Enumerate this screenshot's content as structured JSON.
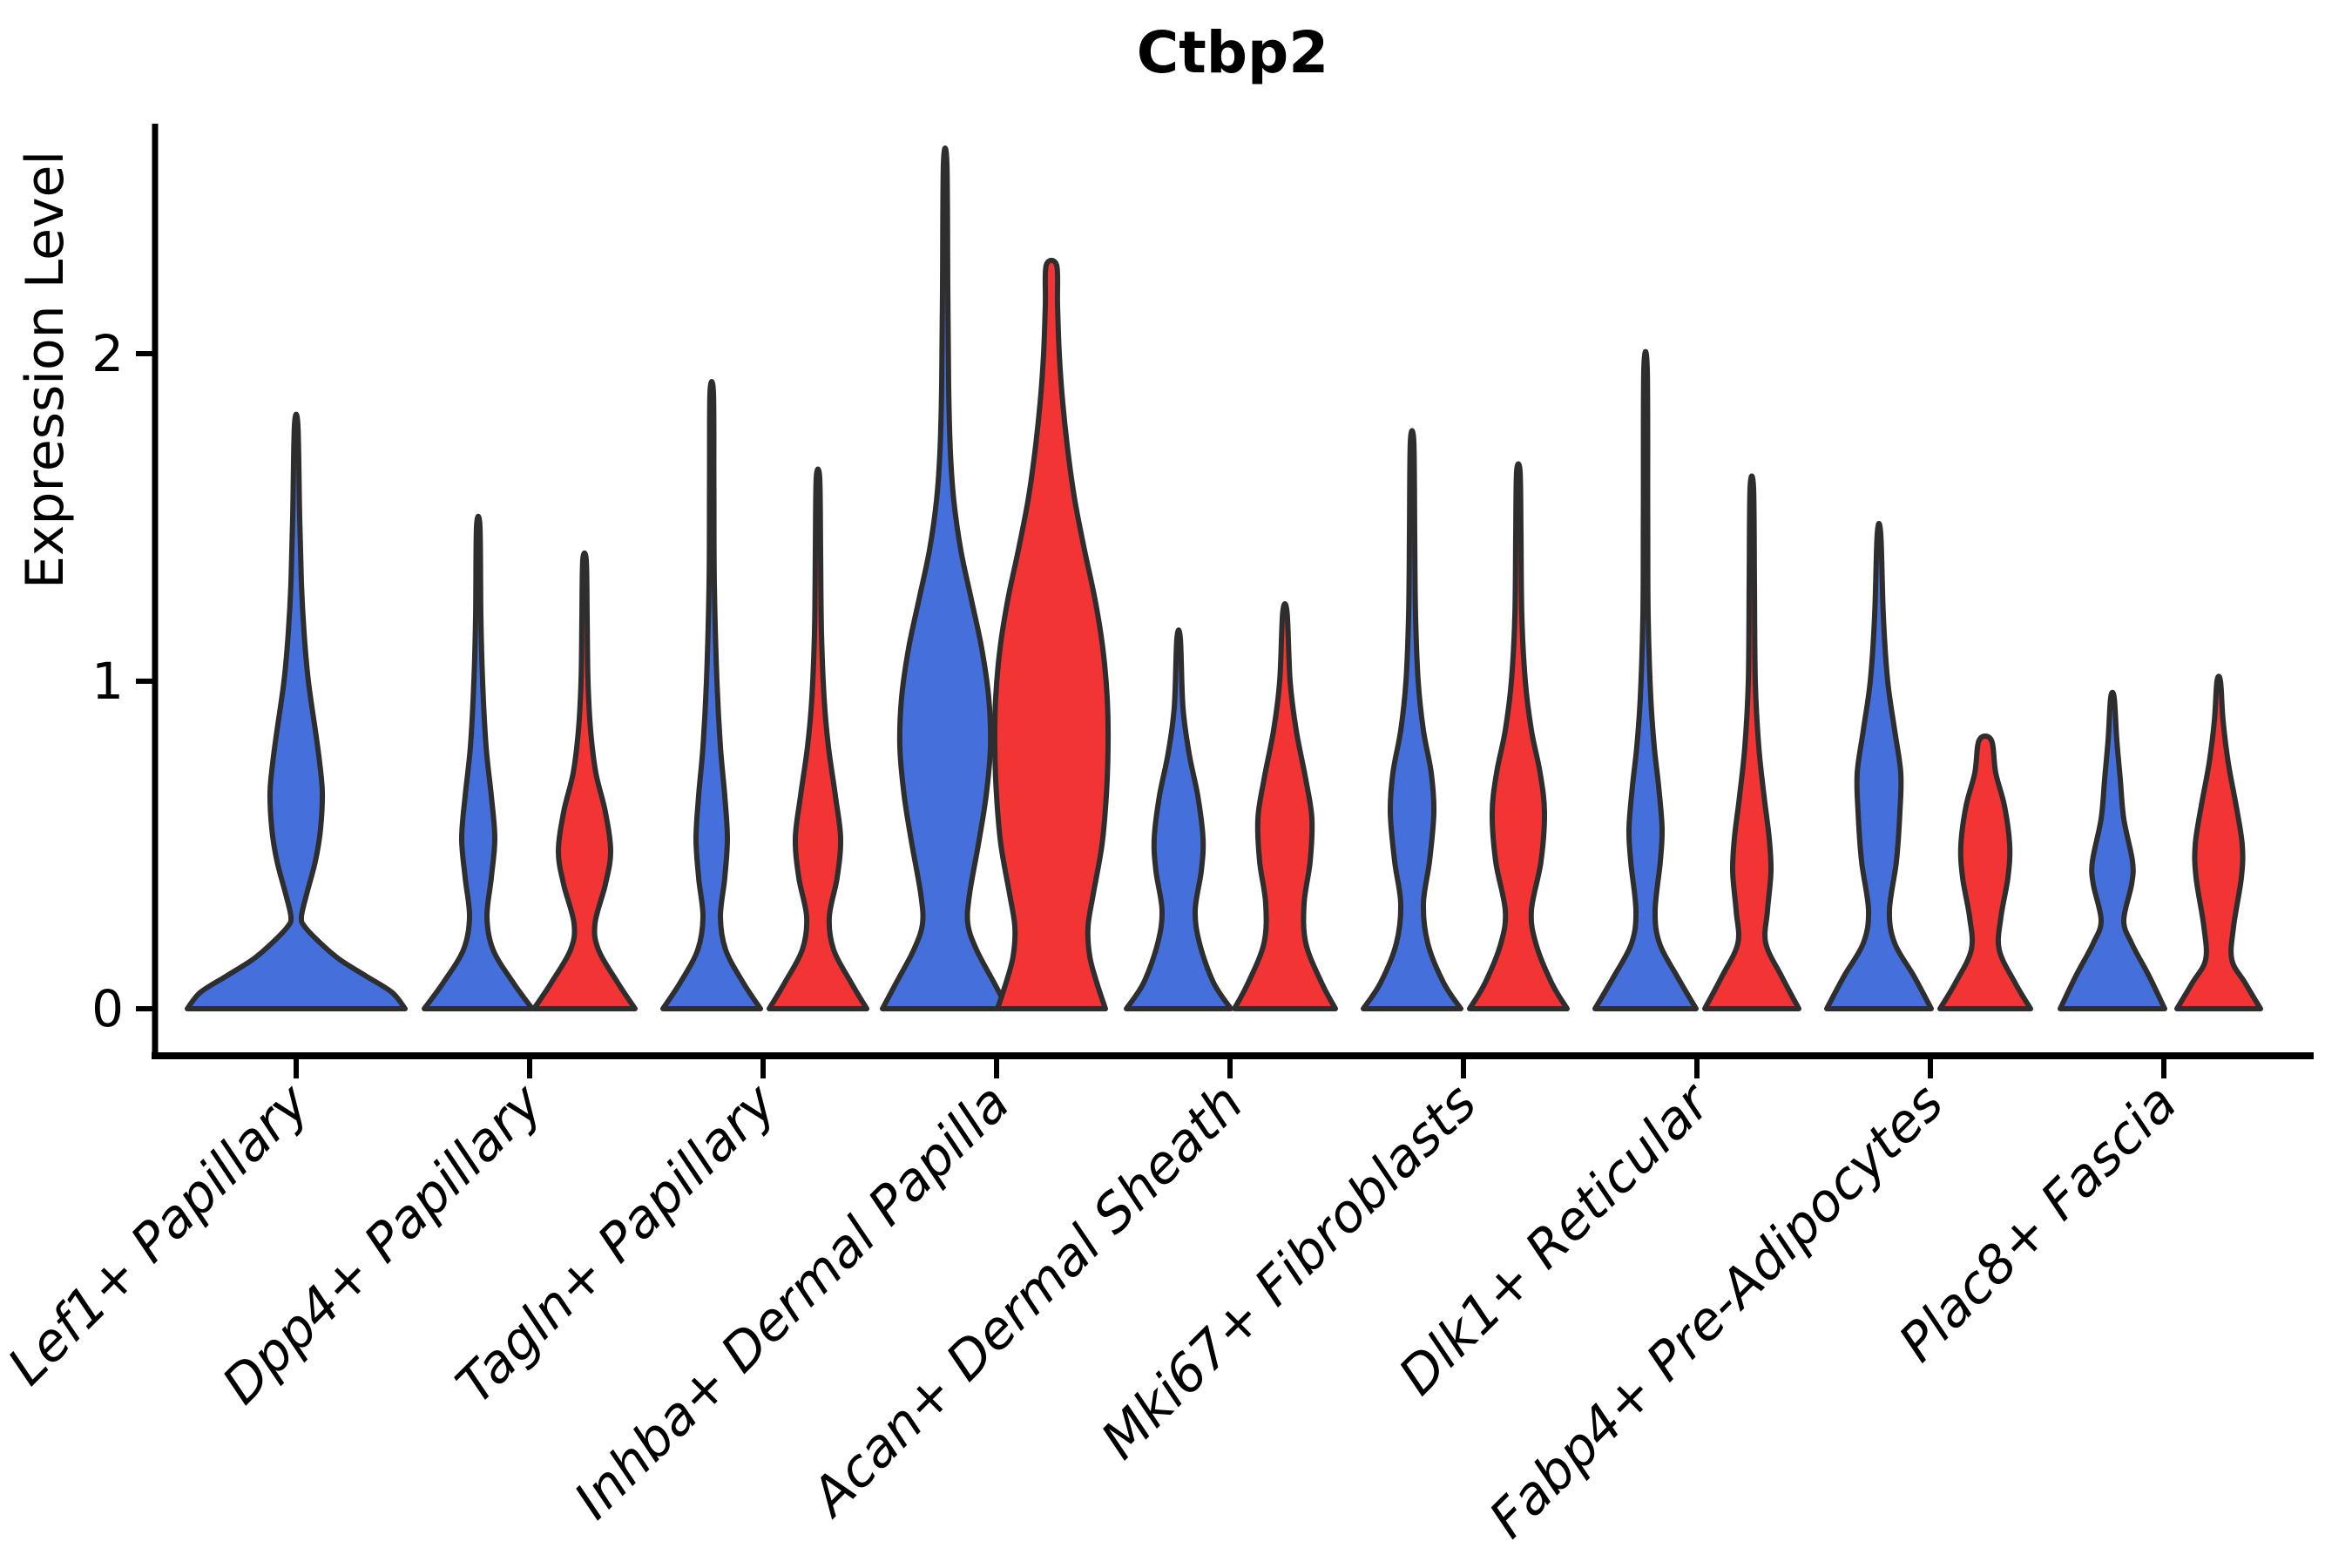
{
  "title": "Ctbp2",
  "y_axis_label": "Expression Level",
  "chart_data": {
    "type": "violin",
    "title": "Ctbp2",
    "xlabel": "",
    "ylabel": "Expression Level",
    "ylim": [
      -0.14,
      2.7
    ],
    "yticks": [
      "0",
      "1",
      "2"
    ],
    "ytick_values": [
      0,
      1,
      2
    ],
    "grid": false,
    "legend": "none",
    "x_tick_label_style": "italic, rotated 45deg, anchored at tick",
    "categories": [
      "Lef1+ Papillary",
      "Dpp4+ Papillary",
      "Tagln+ Papillary",
      "Inhba+ Dermal Papilla",
      "Acan+ Dermal Sheath",
      "Mki67+ Fibroblasts",
      "Dlk1+ Reticular",
      "Fabp4+ Pre-Adipocytes",
      "Plac8+ Fascia"
    ],
    "series": [
      {
        "name": "blue",
        "color": "#4570DC"
      },
      {
        "name": "red",
        "color": "#F23434"
      }
    ],
    "outline_color": "#2E2E2E",
    "violins": [
      {
        "cat": 0,
        "series": "blue",
        "max": 1.78,
        "single": true,
        "profile": [
          [
            0,
            125
          ],
          [
            0.05,
            110
          ],
          [
            0.1,
            80
          ],
          [
            0.15,
            50
          ],
          [
            0.2,
            28
          ],
          [
            0.25,
            10
          ],
          [
            0.28,
            6
          ],
          [
            0.35,
            12
          ],
          [
            0.45,
            22
          ],
          [
            0.55,
            28
          ],
          [
            0.66,
            30
          ],
          [
            0.75,
            27
          ],
          [
            0.85,
            22
          ],
          [
            1.0,
            14
          ],
          [
            1.15,
            9
          ],
          [
            1.3,
            6
          ],
          [
            1.5,
            4
          ],
          [
            1.78,
            2
          ]
        ]
      },
      {
        "cat": 1,
        "series": "blue",
        "max": 1.47,
        "profile": [
          [
            0,
            62
          ],
          [
            0.08,
            40
          ],
          [
            0.18,
            17
          ],
          [
            0.28,
            10
          ],
          [
            0.4,
            15
          ],
          [
            0.52,
            19
          ],
          [
            0.65,
            15
          ],
          [
            0.8,
            9
          ],
          [
            1.0,
            5
          ],
          [
            1.2,
            3
          ],
          [
            1.47,
            2
          ]
        ]
      },
      {
        "cat": 1,
        "series": "red",
        "max": 1.37,
        "profile": [
          [
            0,
            58
          ],
          [
            0.08,
            38
          ],
          [
            0.18,
            16
          ],
          [
            0.26,
            12
          ],
          [
            0.38,
            24
          ],
          [
            0.48,
            30
          ],
          [
            0.6,
            24
          ],
          [
            0.72,
            13
          ],
          [
            0.85,
            7
          ],
          [
            1.0,
            4
          ],
          [
            1.2,
            3
          ],
          [
            1.37,
            2
          ]
        ]
      },
      {
        "cat": 2,
        "series": "blue",
        "max": 1.88,
        "profile": [
          [
            0,
            56
          ],
          [
            0.08,
            36
          ],
          [
            0.18,
            16
          ],
          [
            0.28,
            10
          ],
          [
            0.4,
            15
          ],
          [
            0.52,
            18
          ],
          [
            0.65,
            15
          ],
          [
            0.8,
            10
          ],
          [
            1.0,
            6
          ],
          [
            1.3,
            3
          ],
          [
            1.6,
            2.5
          ],
          [
            1.88,
            2
          ]
        ]
      },
      {
        "cat": 2,
        "series": "red",
        "max": 1.62,
        "profile": [
          [
            0,
            56
          ],
          [
            0.08,
            38
          ],
          [
            0.18,
            18
          ],
          [
            0.28,
            13
          ],
          [
            0.4,
            22
          ],
          [
            0.52,
            26
          ],
          [
            0.65,
            20
          ],
          [
            0.8,
            12
          ],
          [
            0.95,
            7
          ],
          [
            1.15,
            4
          ],
          [
            1.4,
            3
          ],
          [
            1.62,
            2
          ]
        ]
      },
      {
        "cat": 3,
        "series": "blue",
        "max": 2.58,
        "profile": [
          [
            0,
            72
          ],
          [
            0.08,
            56
          ],
          [
            0.18,
            36
          ],
          [
            0.26,
            26
          ],
          [
            0.35,
            28
          ],
          [
            0.5,
            38
          ],
          [
            0.65,
            47
          ],
          [
            0.8,
            52
          ],
          [
            0.95,
            50
          ],
          [
            1.1,
            42
          ],
          [
            1.25,
            30
          ],
          [
            1.4,
            18
          ],
          [
            1.55,
            10
          ],
          [
            1.7,
            6
          ],
          [
            1.9,
            4
          ],
          [
            2.2,
            3
          ],
          [
            2.58,
            2
          ]
        ]
      },
      {
        "cat": 3,
        "series": "red",
        "max": 2.27,
        "profile": [
          [
            0,
            62
          ],
          [
            0.08,
            52
          ],
          [
            0.16,
            44
          ],
          [
            0.25,
            42
          ],
          [
            0.35,
            48
          ],
          [
            0.5,
            58
          ],
          [
            0.65,
            63
          ],
          [
            0.8,
            65
          ],
          [
            0.95,
            64
          ],
          [
            1.1,
            59
          ],
          [
            1.25,
            50
          ],
          [
            1.4,
            38
          ],
          [
            1.55,
            27
          ],
          [
            1.7,
            19
          ],
          [
            1.85,
            13
          ],
          [
            2.0,
            9
          ],
          [
            2.15,
            7
          ],
          [
            2.27,
            6
          ]
        ]
      },
      {
        "cat": 4,
        "series": "blue",
        "max": 1.13,
        "profile": [
          [
            0,
            60
          ],
          [
            0.08,
            40
          ],
          [
            0.2,
            24
          ],
          [
            0.3,
            19
          ],
          [
            0.42,
            26
          ],
          [
            0.52,
            28
          ],
          [
            0.65,
            22
          ],
          [
            0.78,
            12
          ],
          [
            0.92,
            5
          ],
          [
            1.13,
            2
          ]
        ]
      },
      {
        "cat": 4,
        "series": "red",
        "max": 1.21,
        "profile": [
          [
            0,
            58
          ],
          [
            0.08,
            42
          ],
          [
            0.2,
            24
          ],
          [
            0.32,
            22
          ],
          [
            0.45,
            29
          ],
          [
            0.58,
            31
          ],
          [
            0.7,
            24
          ],
          [
            0.85,
            13
          ],
          [
            1.0,
            6
          ],
          [
            1.21,
            2.5
          ]
        ]
      },
      {
        "cat": 5,
        "series": "blue",
        "max": 1.73,
        "profile": [
          [
            0,
            56
          ],
          [
            0.08,
            36
          ],
          [
            0.2,
            18
          ],
          [
            0.32,
            13
          ],
          [
            0.45,
            20
          ],
          [
            0.6,
            25
          ],
          [
            0.72,
            22
          ],
          [
            0.85,
            13
          ],
          [
            1.0,
            7
          ],
          [
            1.2,
            4
          ],
          [
            1.45,
            3
          ],
          [
            1.73,
            2
          ]
        ]
      },
      {
        "cat": 5,
        "series": "red",
        "max": 1.64,
        "profile": [
          [
            0,
            56
          ],
          [
            0.08,
            38
          ],
          [
            0.2,
            20
          ],
          [
            0.3,
            15
          ],
          [
            0.45,
            26
          ],
          [
            0.6,
            30
          ],
          [
            0.72,
            25
          ],
          [
            0.85,
            15
          ],
          [
            1.0,
            8
          ],
          [
            1.2,
            4
          ],
          [
            1.45,
            3
          ],
          [
            1.64,
            2
          ]
        ]
      },
      {
        "cat": 6,
        "series": "blue",
        "max": 1.95,
        "profile": [
          [
            0,
            58
          ],
          [
            0.1,
            36
          ],
          [
            0.2,
            16
          ],
          [
            0.3,
            11
          ],
          [
            0.45,
            17
          ],
          [
            0.55,
            19
          ],
          [
            0.68,
            15
          ],
          [
            0.8,
            10
          ],
          [
            0.95,
            6
          ],
          [
            1.2,
            3
          ],
          [
            1.5,
            2.5
          ],
          [
            1.95,
            2
          ]
        ]
      },
      {
        "cat": 6,
        "series": "red",
        "max": 1.59,
        "profile": [
          [
            0,
            54
          ],
          [
            0.1,
            34
          ],
          [
            0.2,
            16
          ],
          [
            0.3,
            18
          ],
          [
            0.42,
            22
          ],
          [
            0.52,
            20
          ],
          [
            0.65,
            14
          ],
          [
            0.8,
            8
          ],
          [
            1.0,
            4
          ],
          [
            1.3,
            3
          ],
          [
            1.59,
            2
          ]
        ]
      },
      {
        "cat": 7,
        "series": "blue",
        "max": 1.45,
        "profile": [
          [
            0,
            60
          ],
          [
            0.1,
            40
          ],
          [
            0.2,
            18
          ],
          [
            0.3,
            12
          ],
          [
            0.45,
            20
          ],
          [
            0.6,
            24
          ],
          [
            0.72,
            25
          ],
          [
            0.85,
            18
          ],
          [
            1.0,
            10
          ],
          [
            1.2,
            5
          ],
          [
            1.45,
            2
          ]
        ]
      },
      {
        "cat": 7,
        "series": "red",
        "max": 0.82,
        "profile": [
          [
            0,
            52
          ],
          [
            0.08,
            34
          ],
          [
            0.18,
            16
          ],
          [
            0.28,
            18
          ],
          [
            0.4,
            26
          ],
          [
            0.5,
            28
          ],
          [
            0.62,
            22
          ],
          [
            0.72,
            12
          ],
          [
            0.82,
            7
          ]
        ]
      },
      {
        "cat": 8,
        "series": "blue",
        "max": 0.95,
        "profile": [
          [
            0,
            60
          ],
          [
            0.1,
            42
          ],
          [
            0.2,
            22
          ],
          [
            0.27,
            13
          ],
          [
            0.38,
            22
          ],
          [
            0.45,
            23
          ],
          [
            0.58,
            13
          ],
          [
            0.7,
            9
          ],
          [
            0.82,
            5
          ],
          [
            0.95,
            2
          ]
        ]
      },
      {
        "cat": 8,
        "series": "red",
        "max": 1.0,
        "profile": [
          [
            0,
            48
          ],
          [
            0.08,
            30
          ],
          [
            0.15,
            15
          ],
          [
            0.25,
            17
          ],
          [
            0.4,
            26
          ],
          [
            0.5,
            27
          ],
          [
            0.62,
            20
          ],
          [
            0.75,
            11
          ],
          [
            0.88,
            5
          ],
          [
            1.0,
            2
          ]
        ]
      }
    ]
  }
}
